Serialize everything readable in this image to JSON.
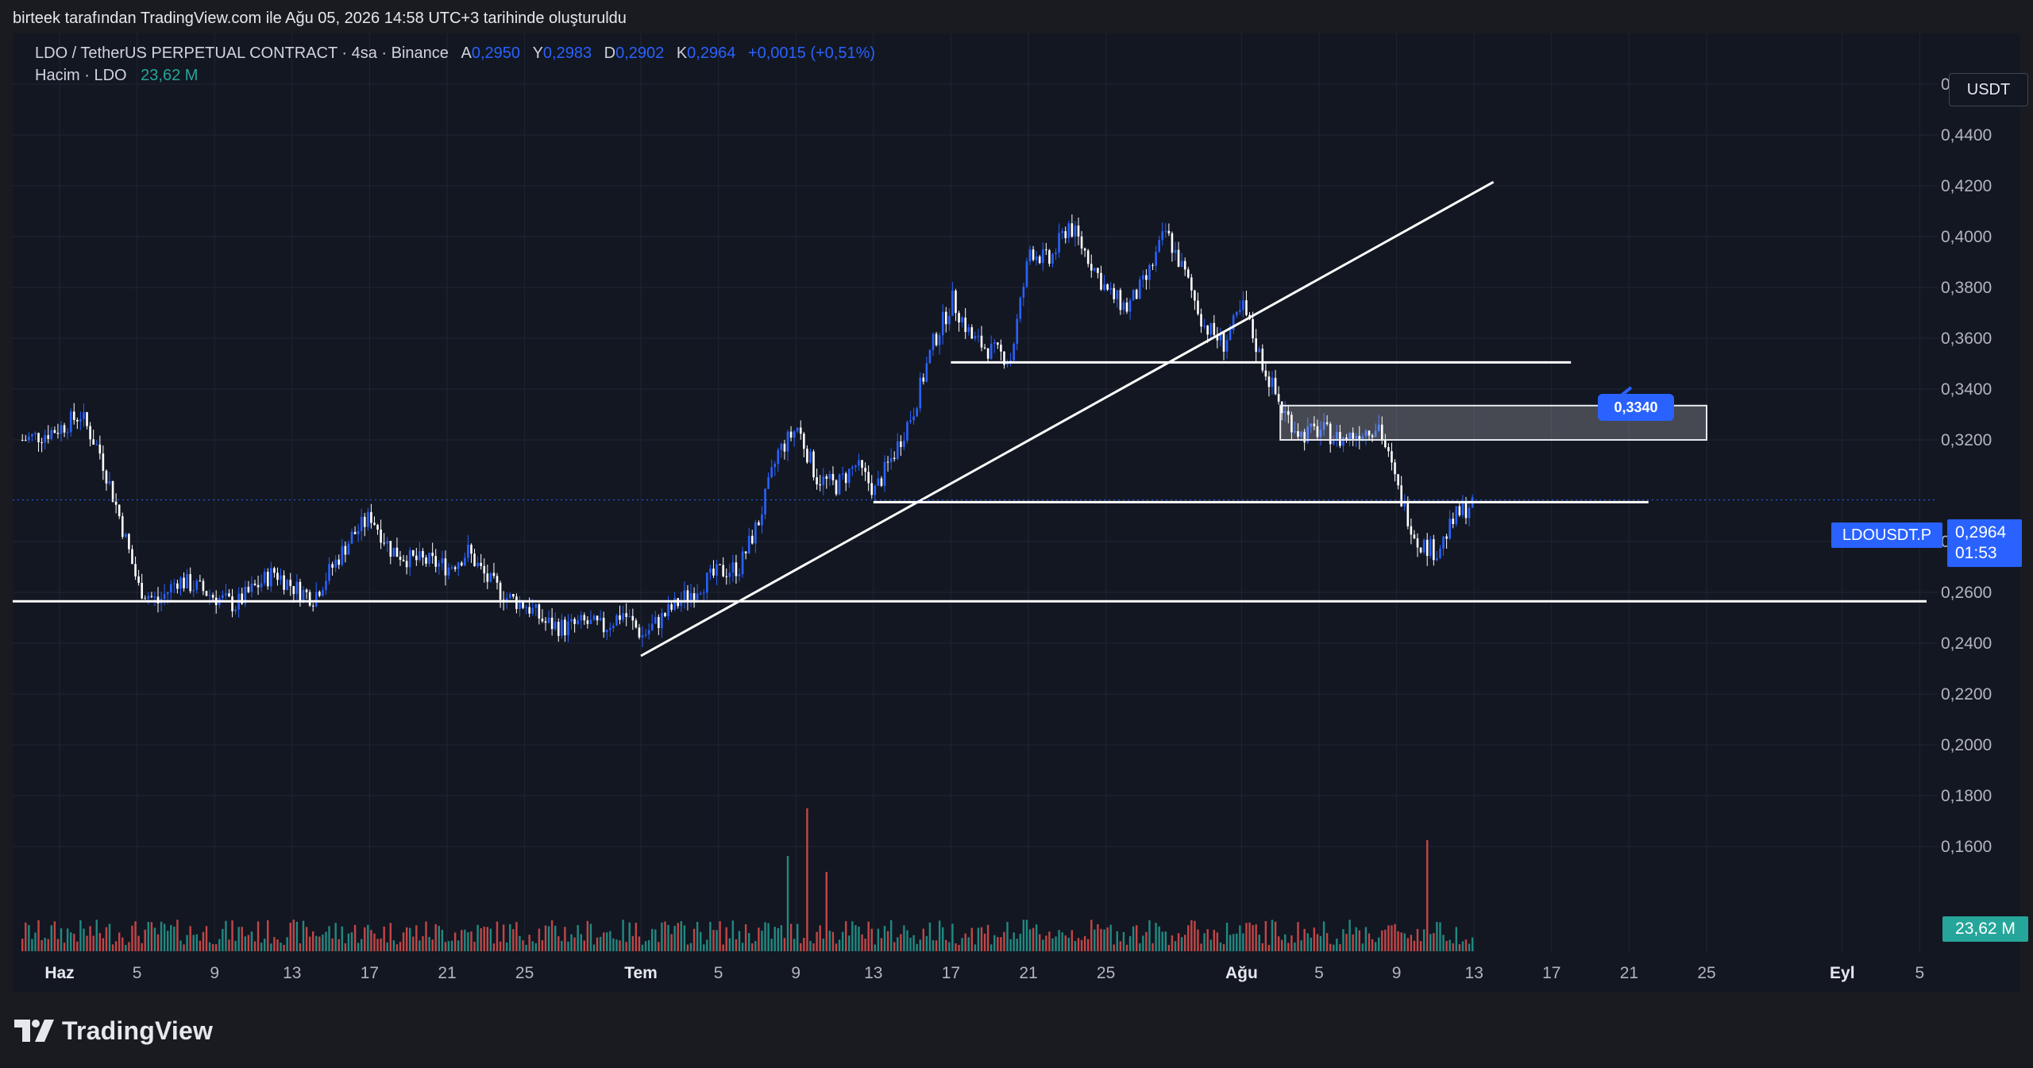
{
  "caption": "birteek tarafından TradingView.com ile Ağu 05, 2026 14:58 UTC+3 tarihinde oluşturuldu",
  "legend": {
    "symbol": "LDO / TetherUS PERPETUAL CONTRACT · 4sa · Binance",
    "open_label": "A",
    "open": "0,2950",
    "high_label": "Y",
    "high": "0,2983",
    "low_label": "D",
    "low": "0,2902",
    "close_label": "K",
    "close": "0,2964",
    "change": "+0,0015 (+0,51%)",
    "volume_label": "Hacim · LDO",
    "volume_value": "23,62 M"
  },
  "currency": "USDT",
  "last_price": {
    "symbol": "LDOUSDT.P",
    "price": "0,2964",
    "countdown": "01:53"
  },
  "volume_tag": "23,62 M",
  "callout": "0,3340",
  "brand": "TradingView",
  "colors": {
    "up": "#2962ff",
    "down": "#ffffff",
    "vol_up": "#26a69a",
    "vol_down": "#ef5350",
    "background": "#131722"
  },
  "chart_data": {
    "type": "candlestick",
    "symbol": "LDOUSDT.P",
    "interval": "4sa",
    "ylim": [
      0.14,
      0.47
    ],
    "y_ticks": [
      "0,4600",
      "0,4400",
      "0,4200",
      "0,4000",
      "0,3800",
      "0,3600",
      "0,3400",
      "0,3200",
      "0,2800",
      "0,2600",
      "0,2400",
      "0,2200",
      "0,2000",
      "0,1800",
      "0,1600"
    ],
    "y_tick_values": [
      0.46,
      0.44,
      0.42,
      0.4,
      0.38,
      0.36,
      0.34,
      0.32,
      0.28,
      0.26,
      0.24,
      0.22,
      0.2,
      0.18,
      0.16
    ],
    "x_ticks": [
      {
        "label": "Haz",
        "date": "2026-06-01"
      },
      {
        "label": "5",
        "date": "2026-06-05"
      },
      {
        "label": "9",
        "date": "2026-06-09"
      },
      {
        "label": "13",
        "date": "2026-06-13"
      },
      {
        "label": "17",
        "date": "2026-06-17"
      },
      {
        "label": "21",
        "date": "2026-06-21"
      },
      {
        "label": "25",
        "date": "2026-06-25"
      },
      {
        "label": "Tem",
        "date": "2026-07-01"
      },
      {
        "label": "5",
        "date": "2026-07-05"
      },
      {
        "label": "9",
        "date": "2026-07-09"
      },
      {
        "label": "13",
        "date": "2026-07-13"
      },
      {
        "label": "17",
        "date": "2026-07-17"
      },
      {
        "label": "21",
        "date": "2026-07-21"
      },
      {
        "label": "25",
        "date": "2026-07-25"
      },
      {
        "label": "Ağu",
        "date": "2026-08-01"
      },
      {
        "label": "5",
        "date": "2026-08-05"
      },
      {
        "label": "9",
        "date": "2026-08-09"
      },
      {
        "label": "13",
        "date": "2026-08-13"
      },
      {
        "label": "17",
        "date": "2026-08-17"
      },
      {
        "label": "21",
        "date": "2026-08-21"
      },
      {
        "label": "25",
        "date": "2026-08-25"
      },
      {
        "label": "Eyl",
        "date": "2026-09-01"
      },
      {
        "label": "5",
        "date": "2026-09-05"
      }
    ],
    "price_path": [
      [
        "2026-05-30",
        0.32
      ],
      [
        "2026-05-31",
        0.322
      ],
      [
        "2026-06-01",
        0.325
      ],
      [
        "2026-06-02",
        0.33
      ],
      [
        "2026-06-03",
        0.315
      ],
      [
        "2026-06-04",
        0.29
      ],
      [
        "2026-06-05",
        0.262
      ],
      [
        "2026-06-06",
        0.256
      ],
      [
        "2026-06-07",
        0.265
      ],
      [
        "2026-06-08",
        0.262
      ],
      [
        "2026-06-09",
        0.258
      ],
      [
        "2026-06-10",
        0.255
      ],
      [
        "2026-06-11",
        0.262
      ],
      [
        "2026-06-12",
        0.268
      ],
      [
        "2026-06-13",
        0.262
      ],
      [
        "2026-06-14",
        0.258
      ],
      [
        "2026-06-15",
        0.27
      ],
      [
        "2026-06-16",
        0.282
      ],
      [
        "2026-06-17",
        0.29
      ],
      [
        "2026-06-18",
        0.277
      ],
      [
        "2026-06-19",
        0.273
      ],
      [
        "2026-06-20",
        0.272
      ],
      [
        "2026-06-21",
        0.27
      ],
      [
        "2026-06-22",
        0.276
      ],
      [
        "2026-06-23",
        0.265
      ],
      [
        "2026-06-24",
        0.258
      ],
      [
        "2026-06-25",
        0.255
      ],
      [
        "2026-06-26",
        0.248
      ],
      [
        "2026-06-27",
        0.246
      ],
      [
        "2026-06-28",
        0.248
      ],
      [
        "2026-06-29",
        0.246
      ],
      [
        "2026-06-30",
        0.252
      ],
      [
        "2026-07-01",
        0.243
      ],
      [
        "2026-07-02",
        0.25
      ],
      [
        "2026-07-03",
        0.257
      ],
      [
        "2026-07-04",
        0.263
      ],
      [
        "2026-07-05",
        0.268
      ],
      [
        "2026-07-06",
        0.27
      ],
      [
        "2026-07-07",
        0.288
      ],
      [
        "2026-07-08",
        0.315
      ],
      [
        "2026-07-09",
        0.325
      ],
      [
        "2026-07-10",
        0.305
      ],
      [
        "2026-07-11",
        0.302
      ],
      [
        "2026-07-12",
        0.31
      ],
      [
        "2026-07-13",
        0.3
      ],
      [
        "2026-07-14",
        0.315
      ],
      [
        "2026-07-15",
        0.332
      ],
      [
        "2026-07-16",
        0.358
      ],
      [
        "2026-07-17",
        0.375
      ],
      [
        "2026-07-18",
        0.36
      ],
      [
        "2026-07-19",
        0.355
      ],
      [
        "2026-07-20",
        0.352
      ],
      [
        "2026-07-21",
        0.395
      ],
      [
        "2026-07-22",
        0.39
      ],
      [
        "2026-07-23",
        0.405
      ],
      [
        "2026-07-24",
        0.392
      ],
      [
        "2026-07-25",
        0.378
      ],
      [
        "2026-07-26",
        0.372
      ],
      [
        "2026-07-27",
        0.383
      ],
      [
        "2026-07-28",
        0.402
      ],
      [
        "2026-07-29",
        0.385
      ],
      [
        "2026-07-30",
        0.365
      ],
      [
        "2026-07-31",
        0.358
      ],
      [
        "2026-08-01",
        0.372
      ],
      [
        "2026-08-02",
        0.35
      ],
      [
        "2026-08-03",
        0.332
      ],
      [
        "2026-08-04",
        0.322
      ],
      [
        "2026-08-05",
        0.324
      ],
      [
        "2026-08-06",
        0.32
      ],
      [
        "2026-08-07",
        0.323
      ],
      [
        "2026-08-08",
        0.326
      ],
      [
        "2026-08-09",
        0.3
      ],
      [
        "2026-08-10",
        0.28
      ],
      [
        "2026-08-11",
        0.276
      ],
      [
        "2026-08-12",
        0.29
      ],
      [
        "2026-08-13",
        0.2964
      ]
    ],
    "volume_spikes": [
      [
        "2026-07-08",
        30
      ],
      [
        "2026-07-09",
        45
      ],
      [
        "2026-07-10",
        25
      ],
      [
        "2026-08-10",
        35
      ]
    ],
    "drawings": [
      {
        "type": "hline",
        "price": 0.2565
      },
      {
        "type": "hline",
        "price": 0.2955
      },
      {
        "type": "hline",
        "price": 0.3505
      },
      {
        "type": "trendline",
        "from": [
          "2026-07-01",
          0.235
        ],
        "to": [
          "2026-08-14",
          0.4215
        ]
      },
      {
        "type": "rectangle",
        "price_from": 0.32,
        "price_to": 0.3335
      },
      {
        "type": "callout",
        "label": "0,3340"
      }
    ]
  }
}
